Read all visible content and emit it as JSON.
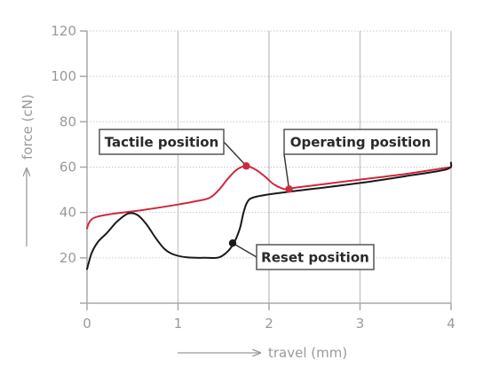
{
  "chart_data": {
    "type": "line",
    "title": "",
    "xlabel": "travel (mm)",
    "ylabel": "force (cN)",
    "xlim": [
      0,
      4
    ],
    "ylim": [
      0,
      120
    ],
    "xticks": [
      "0",
      "1",
      "2",
      "3",
      "4"
    ],
    "yticks": [
      "20",
      "40",
      "60",
      "80",
      "100",
      "120"
    ],
    "grid": true,
    "series": [
      {
        "color": "#d0283c",
        "points": [
          [
            0.0,
            33
          ],
          [
            0.03,
            36
          ],
          [
            0.1,
            38
          ],
          [
            0.3,
            39.5
          ],
          [
            0.6,
            41
          ],
          [
            1.0,
            43.5
          ],
          [
            1.2,
            45
          ],
          [
            1.35,
            46.5
          ],
          [
            1.45,
            50
          ],
          [
            1.55,
            55
          ],
          [
            1.65,
            59
          ],
          [
            1.75,
            60.5
          ],
          [
            1.85,
            59
          ],
          [
            1.95,
            56
          ],
          [
            2.05,
            52.5
          ],
          [
            2.15,
            50.5
          ],
          [
            2.2,
            50.3
          ],
          [
            2.3,
            51
          ],
          [
            2.6,
            52.5
          ],
          [
            3.0,
            54.5
          ],
          [
            3.5,
            57
          ],
          [
            4.0,
            60
          ]
        ]
      },
      {
        "color": "#1a1a1a",
        "points": [
          [
            0.0,
            15
          ],
          [
            0.05,
            22
          ],
          [
            0.12,
            27
          ],
          [
            0.22,
            31
          ],
          [
            0.33,
            36
          ],
          [
            0.45,
            39.5
          ],
          [
            0.55,
            39
          ],
          [
            0.65,
            35
          ],
          [
            0.75,
            29
          ],
          [
            0.85,
            24
          ],
          [
            0.95,
            21.5
          ],
          [
            1.1,
            20.2
          ],
          [
            1.3,
            20
          ],
          [
            1.45,
            20.2
          ],
          [
            1.55,
            23
          ],
          [
            1.62,
            27
          ],
          [
            1.68,
            33
          ],
          [
            1.72,
            40
          ],
          [
            1.76,
            44.5
          ],
          [
            1.82,
            46.5
          ],
          [
            2.0,
            48
          ],
          [
            2.5,
            50.5
          ],
          [
            3.0,
            53
          ],
          [
            3.5,
            56
          ],
          [
            3.95,
            59
          ],
          [
            4.0,
            62
          ]
        ]
      }
    ],
    "markers": [
      {
        "label": "Tactile position",
        "x": 1.75,
        "y": 60.5,
        "color": "#d0283c"
      },
      {
        "label": "Operating position",
        "x": 2.22,
        "y": 50.3,
        "color": "#d0283c"
      },
      {
        "label": "Reset position",
        "x": 1.6,
        "y": 26.5,
        "color": "#1a1a1a"
      }
    ]
  }
}
